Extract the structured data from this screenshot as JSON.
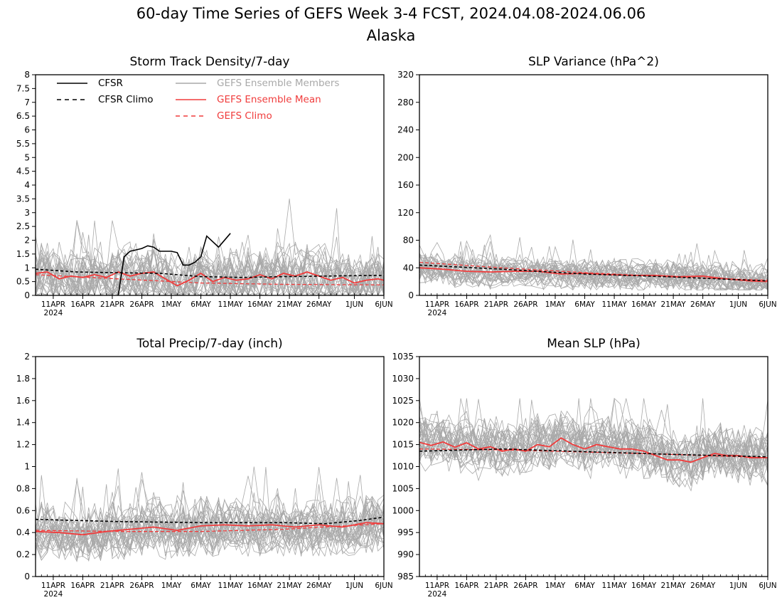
{
  "figure": {
    "title": "60-day Time Series of GEFS Week 3-4 FCST, 2024.04.08-2024.06.06",
    "subtitle": "Alaska",
    "colors": {
      "cfsr": "#000000",
      "cfsr_climo": "#000000",
      "members": "#a9a9a9",
      "ensemble_mean": "#f03c3c",
      "gefs_climo": "#f03c3c"
    }
  },
  "legend": {
    "placement": "top-left of Storm Track Density panel",
    "cfsr": "CFSR",
    "cfsr_climo": "CFSR Climo",
    "members": "GEFS Ensemble Members",
    "ensemble_mean": "GEFS Ensemble Mean",
    "gefs_climo": "GEFS Climo"
  },
  "chart_data": [
    {
      "type": "line",
      "title": "Storm Track Density/7-day",
      "xlabel": "",
      "ylabel": "",
      "xlim": [
        "2024-04-08",
        "2024-06-06"
      ],
      "x_tick_labels": [
        "11APR",
        "16APR",
        "21APR",
        "26APR",
        "1MAY",
        "6MAY",
        "11MAY",
        "16MAY",
        "21MAY",
        "26MAY",
        "1JUN",
        "6JUN"
      ],
      "x_tick_dates": [
        "2024-04-11",
        "2024-04-16",
        "2024-04-21",
        "2024-04-26",
        "2024-05-01",
        "2024-05-06",
        "2024-05-11",
        "2024-05-16",
        "2024-05-21",
        "2024-05-26",
        "2024-06-01",
        "2024-06-06"
      ],
      "x_year_label": "2024",
      "ylim": [
        0,
        8
      ],
      "y_ticks": [
        "0",
        "0.5",
        "1",
        "1.5",
        "2",
        "2.5",
        "3",
        "3.5",
        "4",
        "4.5",
        "5",
        "5.5",
        "6",
        "6.5",
        "7",
        "7.5",
        "8"
      ],
      "grid": false,
      "members": {
        "count": 30,
        "min_y": 0,
        "max_y": 3.7,
        "typical_range": [
          0,
          2.5
        ]
      },
      "series": [
        {
          "name": "CFSR",
          "style": "solid-black",
          "x": [
            "2024-04-22",
            "2024-04-23",
            "2024-04-24",
            "2024-04-25",
            "2024-04-26",
            "2024-04-27",
            "2024-04-28",
            "2024-04-29",
            "2024-04-30",
            "2024-05-01",
            "2024-05-02",
            "2024-05-03",
            "2024-05-04",
            "2024-05-05",
            "2024-05-06",
            "2024-05-07",
            "2024-05-09",
            "2024-05-11"
          ],
          "y": [
            0.0,
            1.4,
            1.6,
            1.65,
            1.7,
            1.8,
            1.75,
            1.6,
            1.6,
            1.6,
            1.55,
            1.1,
            1.1,
            1.2,
            1.4,
            2.15,
            1.75,
            2.25
          ]
        },
        {
          "name": "CFSR Climo",
          "style": "dashed-black",
          "x": [
            "2024-04-08",
            "2024-04-15",
            "2024-04-22",
            "2024-04-29",
            "2024-05-06",
            "2024-05-13",
            "2024-05-20",
            "2024-05-27",
            "2024-06-03",
            "2024-06-06"
          ],
          "y": [
            0.95,
            0.85,
            0.82,
            0.8,
            0.68,
            0.65,
            0.68,
            0.7,
            0.72,
            0.72
          ]
        },
        {
          "name": "GEFS Ensemble Mean",
          "style": "solid-red",
          "x": [
            "2024-04-08",
            "2024-04-10",
            "2024-04-12",
            "2024-04-14",
            "2024-04-16",
            "2024-04-18",
            "2024-04-20",
            "2024-04-22",
            "2024-04-24",
            "2024-04-26",
            "2024-04-28",
            "2024-04-30",
            "2024-05-02",
            "2024-05-04",
            "2024-05-06",
            "2024-05-08",
            "2024-05-10",
            "2024-05-12",
            "2024-05-14",
            "2024-05-16",
            "2024-05-18",
            "2024-05-20",
            "2024-05-22",
            "2024-05-24",
            "2024-05-26",
            "2024-05-28",
            "2024-05-30",
            "2024-06-01",
            "2024-06-03",
            "2024-06-05",
            "2024-06-06"
          ],
          "y": [
            0.8,
            0.85,
            0.6,
            0.7,
            0.65,
            0.75,
            0.65,
            0.85,
            0.7,
            0.8,
            0.85,
            0.6,
            0.35,
            0.55,
            0.8,
            0.5,
            0.65,
            0.55,
            0.6,
            0.75,
            0.6,
            0.8,
            0.7,
            0.85,
            0.7,
            0.55,
            0.65,
            0.45,
            0.55,
            0.6,
            0.55
          ]
        },
        {
          "name": "GEFS Climo",
          "style": "dashed-red",
          "x": [
            "2024-04-08",
            "2024-04-22",
            "2024-05-06",
            "2024-05-20",
            "2024-06-06"
          ],
          "y": [
            0.75,
            0.6,
            0.45,
            0.4,
            0.38
          ]
        }
      ]
    },
    {
      "type": "line",
      "title": "SLP Variance (hPa^2)",
      "xlabel": "",
      "ylabel": "",
      "xlim": [
        "2024-04-08",
        "2024-06-06"
      ],
      "x_tick_labels": [
        "11APR",
        "16APR",
        "21APR",
        "26APR",
        "1MAY",
        "6MAY",
        "11MAY",
        "16MAY",
        "21MAY",
        "26MAY",
        "1JUN",
        "6JUN"
      ],
      "x_tick_dates": [
        "2024-04-11",
        "2024-04-16",
        "2024-04-21",
        "2024-04-26",
        "2024-05-01",
        "2024-05-06",
        "2024-05-11",
        "2024-05-16",
        "2024-05-21",
        "2024-05-26",
        "2024-06-01",
        "2024-06-06"
      ],
      "x_year_label": "2024",
      "ylim": [
        0,
        320
      ],
      "y_ticks": [
        "0",
        "40",
        "80",
        "120",
        "160",
        "200",
        "240",
        "280",
        "320"
      ],
      "grid": false,
      "members": {
        "count": 30,
        "min_y": 8,
        "max_y": 90,
        "typical_range": [
          15,
          65
        ]
      },
      "series": [
        {
          "name": "CFSR Climo",
          "style": "dashed-black",
          "x": [
            "2024-04-08",
            "2024-04-22",
            "2024-05-06",
            "2024-05-20",
            "2024-06-06"
          ],
          "y": [
            44,
            38,
            31,
            27,
            21
          ]
        },
        {
          "name": "GEFS Ensemble Mean",
          "style": "solid-red",
          "x": [
            "2024-04-08",
            "2024-04-12",
            "2024-04-16",
            "2024-04-20",
            "2024-04-24",
            "2024-04-28",
            "2024-05-02",
            "2024-05-06",
            "2024-05-10",
            "2024-05-14",
            "2024-05-18",
            "2024-05-22",
            "2024-05-26",
            "2024-05-30",
            "2024-06-03",
            "2024-06-06"
          ],
          "y": [
            40,
            38,
            35,
            34,
            35,
            35,
            31,
            32,
            30,
            29,
            29,
            27,
            28,
            24,
            21,
            20
          ]
        },
        {
          "name": "GEFS Climo",
          "style": "dashed-red",
          "x": [
            "2024-04-08",
            "2024-04-22",
            "2024-05-06",
            "2024-05-20",
            "2024-06-06"
          ],
          "y": [
            48,
            40,
            33,
            27,
            22
          ]
        }
      ]
    },
    {
      "type": "line",
      "title": "Total Precip/7-day (inch)",
      "xlabel": "",
      "ylabel": "",
      "xlim": [
        "2024-04-08",
        "2024-06-06"
      ],
      "x_tick_labels": [
        "11APR",
        "16APR",
        "21APR",
        "26APR",
        "1MAY",
        "6MAY",
        "11MAY",
        "16MAY",
        "21MAY",
        "26MAY",
        "1JUN",
        "6JUN"
      ],
      "x_tick_dates": [
        "2024-04-11",
        "2024-04-16",
        "2024-04-21",
        "2024-04-26",
        "2024-05-01",
        "2024-05-06",
        "2024-05-11",
        "2024-05-16",
        "2024-05-21",
        "2024-05-26",
        "2024-06-01",
        "2024-06-06"
      ],
      "x_year_label": "2024",
      "ylim": [
        0,
        2
      ],
      "y_ticks": [
        "0",
        "0.2",
        "0.4",
        "0.6",
        "0.8",
        "1",
        "1.2",
        "1.4",
        "1.6",
        "1.8",
        "2"
      ],
      "grid": false,
      "members": {
        "count": 30,
        "min_y": 0.05,
        "max_y": 1.0,
        "typical_range": [
          0.2,
          0.75
        ]
      },
      "series": [
        {
          "name": "CFSR Climo",
          "style": "dashed-black",
          "x": [
            "2024-04-08",
            "2024-04-22",
            "2024-05-06",
            "2024-05-20",
            "2024-05-27",
            "2024-06-02",
            "2024-06-06"
          ],
          "y": [
            0.52,
            0.5,
            0.49,
            0.49,
            0.48,
            0.51,
            0.54
          ]
        },
        {
          "name": "GEFS Ensemble Mean",
          "style": "solid-red",
          "x": [
            "2024-04-08",
            "2024-04-12",
            "2024-04-16",
            "2024-04-20",
            "2024-04-24",
            "2024-04-28",
            "2024-05-02",
            "2024-05-06",
            "2024-05-10",
            "2024-05-14",
            "2024-05-18",
            "2024-05-22",
            "2024-05-26",
            "2024-05-30",
            "2024-06-03",
            "2024-06-06"
          ],
          "y": [
            0.41,
            0.4,
            0.38,
            0.41,
            0.43,
            0.45,
            0.42,
            0.46,
            0.47,
            0.46,
            0.47,
            0.45,
            0.47,
            0.45,
            0.49,
            0.48
          ]
        },
        {
          "name": "GEFS Climo",
          "style": "dashed-red",
          "x": [
            "2024-04-08",
            "2024-04-22",
            "2024-05-06",
            "2024-05-20",
            "2024-06-06"
          ],
          "y": [
            0.42,
            0.41,
            0.41,
            0.43,
            0.48
          ]
        }
      ]
    },
    {
      "type": "line",
      "title": "Mean SLP (hPa)",
      "xlabel": "",
      "ylabel": "",
      "xlim": [
        "2024-04-08",
        "2024-06-06"
      ],
      "x_tick_labels": [
        "11APR",
        "16APR",
        "21APR",
        "26APR",
        "1MAY",
        "6MAY",
        "11MAY",
        "16MAY",
        "21MAY",
        "26MAY",
        "1JUN",
        "6JUN"
      ],
      "x_tick_dates": [
        "2024-04-11",
        "2024-04-16",
        "2024-04-21",
        "2024-04-26",
        "2024-05-01",
        "2024-05-06",
        "2024-05-11",
        "2024-05-16",
        "2024-05-21",
        "2024-05-26",
        "2024-06-01",
        "2024-06-06"
      ],
      "x_year_label": "2024",
      "ylim": [
        985,
        1035
      ],
      "y_ticks": [
        "985",
        "990",
        "995",
        "1000",
        "1005",
        "1010",
        "1015",
        "1020",
        "1025",
        "1030",
        "1035"
      ],
      "grid": false,
      "members": {
        "count": 30,
        "min_y": 1004,
        "max_y": 1025.5,
        "typical_range": [
          1007,
          1021
        ]
      },
      "series": [
        {
          "name": "CFSR Climo",
          "style": "dashed-black",
          "x": [
            "2024-04-08",
            "2024-04-22",
            "2024-05-06",
            "2024-05-20",
            "2024-06-06"
          ],
          "y": [
            1013.5,
            1014.0,
            1013.4,
            1012.8,
            1012.2
          ]
        },
        {
          "name": "GEFS Ensemble Mean",
          "style": "solid-red",
          "x": [
            "2024-04-08",
            "2024-04-10",
            "2024-04-12",
            "2024-04-14",
            "2024-04-16",
            "2024-04-18",
            "2024-04-20",
            "2024-04-22",
            "2024-04-24",
            "2024-04-26",
            "2024-04-28",
            "2024-04-30",
            "2024-05-02",
            "2024-05-04",
            "2024-05-06",
            "2024-05-08",
            "2024-05-10",
            "2024-05-12",
            "2024-05-14",
            "2024-05-16",
            "2024-05-18",
            "2024-05-20",
            "2024-05-22",
            "2024-05-24",
            "2024-05-26",
            "2024-05-28",
            "2024-05-30",
            "2024-06-01",
            "2024-06-03",
            "2024-06-06"
          ],
          "y": [
            1015.5,
            1014.8,
            1015.6,
            1014.4,
            1015.4,
            1014.0,
            1014.5,
            1013.5,
            1014.0,
            1013.5,
            1015.0,
            1014.5,
            1016.5,
            1015.0,
            1014.0,
            1015.0,
            1014.5,
            1014.0,
            1014.0,
            1013.5,
            1012.5,
            1011.5,
            1011.5,
            1011.0,
            1012.0,
            1013.0,
            1012.5,
            1012.5,
            1012.0,
            1012.0
          ]
        },
        {
          "name": "GEFS Climo",
          "style": "dashed-red",
          "x": [
            "2024-04-08",
            "2024-04-22",
            "2024-05-06",
            "2024-05-20",
            "2024-06-06"
          ],
          "y": [
            1014.0,
            1013.8,
            1013.3,
            1012.8,
            1012.0
          ]
        }
      ]
    }
  ]
}
